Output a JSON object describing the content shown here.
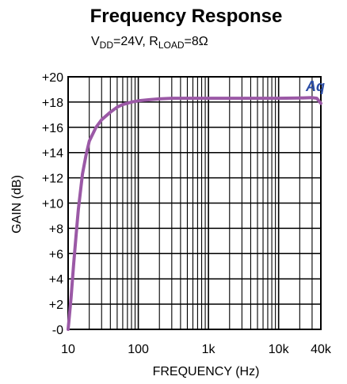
{
  "chart_data": {
    "type": "line",
    "title": "Frequency Response",
    "subtitle": {
      "parts": [
        {
          "text": "V",
          "sub": false
        },
        {
          "text": "DD",
          "sub": true
        },
        {
          "text": "=24V, R",
          "sub": false
        },
        {
          "text": "LOAD",
          "sub": true
        },
        {
          "text": "=8Ω",
          "sub": false
        }
      ]
    },
    "xlabel": "FREQUENCY (Hz)",
    "ylabel": "GAIN (dB)",
    "x_scale": "log",
    "xlim": [
      10,
      40000
    ],
    "ylim": [
      0,
      20
    ],
    "x_ticks": [
      {
        "value": 10,
        "label": "10"
      },
      {
        "value": 100,
        "label": "100"
      },
      {
        "value": 1000,
        "label": "1k"
      },
      {
        "value": 10000,
        "label": "10k"
      },
      {
        "value": 40000,
        "label": "40k"
      }
    ],
    "y_ticks": [
      {
        "value": 0,
        "label": "-0"
      },
      {
        "value": 2,
        "label": "+2"
      },
      {
        "value": 4,
        "label": "+4"
      },
      {
        "value": 6,
        "label": "+6"
      },
      {
        "value": 8,
        "label": "+8"
      },
      {
        "value": 10,
        "label": "+10"
      },
      {
        "value": 12,
        "label": "+12"
      },
      {
        "value": 14,
        "label": "+14"
      },
      {
        "value": 16,
        "label": "+16"
      },
      {
        "value": 18,
        "label": "+18"
      },
      {
        "value": 20,
        "label": "+20"
      }
    ],
    "grid": true,
    "series": [
      {
        "color": "#9b59a6",
        "x": [
          10,
          11,
          12,
          13,
          14,
          16,
          18,
          20,
          25,
          30,
          40,
          50,
          60,
          80,
          100,
          150,
          200,
          300,
          500,
          1000,
          2000,
          5000,
          10000,
          20000,
          30000,
          35000,
          40000
        ],
        "y": [
          0,
          2.5,
          5.2,
          7.5,
          9.5,
          12.3,
          13.8,
          14.9,
          16.0,
          16.6,
          17.2,
          17.6,
          17.8,
          18.0,
          18.1,
          18.2,
          18.25,
          18.3,
          18.3,
          18.3,
          18.3,
          18.3,
          18.3,
          18.32,
          18.35,
          18.3,
          17.9
        ]
      }
    ],
    "logo": {
      "text": "Aq",
      "color": "#2b4da6"
    }
  }
}
